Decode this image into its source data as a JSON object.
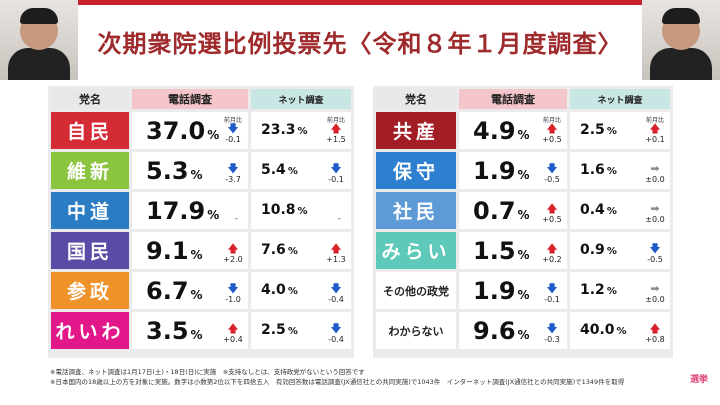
{
  "title": "次期衆院選比例投票先〈令和８年１月度調査〉",
  "headers": {
    "party": "党名",
    "phone": "電話調査",
    "net": "ネット調査"
  },
  "change_label": "前月比",
  "left_rows": [
    {
      "name": "自民",
      "color": "#d52b35",
      "phone": "37.0",
      "phone_dir": "down",
      "phone_chg": "-0.1",
      "net": "23.3",
      "net_dir": "up",
      "net_chg": "+1.5"
    },
    {
      "name": "維新",
      "color": "#8bc43f",
      "phone": "5.3",
      "phone_dir": "down",
      "phone_chg": "-3.7",
      "net": "5.4",
      "net_dir": "down",
      "net_chg": "-0.1"
    },
    {
      "name": "中道",
      "color": "#2a7dc2",
      "phone": "17.9",
      "phone_dir": "none",
      "phone_chg": "-",
      "net": "10.8",
      "net_dir": "none",
      "net_chg": "-"
    },
    {
      "name": "国民",
      "color": "#5b4aa6",
      "phone": "9.1",
      "phone_dir": "up",
      "phone_chg": "+2.0",
      "net": "7.6",
      "net_dir": "up",
      "net_chg": "+1.3"
    },
    {
      "name": "参政",
      "color": "#f0922a",
      "phone": "6.7",
      "phone_dir": "down",
      "phone_chg": "-1.0",
      "net": "4.0",
      "net_dir": "down",
      "net_chg": "-0.4"
    },
    {
      "name": "れいわ",
      "color": "#e2188a",
      "phone": "3.5",
      "phone_dir": "up",
      "phone_chg": "+0.4",
      "net": "2.5",
      "net_dir": "down",
      "net_chg": "-0.4"
    }
  ],
  "right_rows": [
    {
      "name": "共産",
      "color": "#a31d24",
      "phone": "4.9",
      "phone_dir": "up",
      "phone_chg": "+0.5",
      "net": "2.5",
      "net_dir": "up",
      "net_chg": "+0.1"
    },
    {
      "name": "保守",
      "color": "#2d80cf",
      "phone": "1.9",
      "phone_dir": "down",
      "phone_chg": "-0.5",
      "net": "1.6",
      "net_dir": "flat",
      "net_chg": "±0.0"
    },
    {
      "name": "社民",
      "color": "#5e9ad6",
      "phone": "0.7",
      "phone_dir": "up",
      "phone_chg": "+0.5",
      "net": "0.4",
      "net_dir": "flat",
      "net_chg": "±0.0"
    },
    {
      "name": "みらい",
      "color": "#5fc9b9",
      "phone": "1.5",
      "phone_dir": "up",
      "phone_chg": "+0.2",
      "net": "0.9",
      "net_dir": "down",
      "net_chg": "-0.5"
    },
    {
      "name": "その他の政党",
      "color": "#ffffff",
      "small": true,
      "phone": "1.9",
      "phone_dir": "down",
      "phone_chg": "-0.1",
      "net": "1.2",
      "net_dir": "flat",
      "net_chg": "±0.0"
    },
    {
      "name": "わからない",
      "color": "#ffffff",
      "small": true,
      "phone": "9.6",
      "phone_dir": "down",
      "phone_chg": "-0.3",
      "net": "40.0",
      "net_dir": "up",
      "net_chg": "+0.8"
    }
  ],
  "footnotes": [
    "※電話調査、ネット調査は1月17日(土)・18日(日)に実施　※支持なしとは、支持政党がないという回答です",
    "※日本国内の18歳以上の方を対象に実施。数字は小数第2位以下を四捨五入　有効回答数は電話調査(JX通信社との共同実施)で1043件　インターネット調査(JX通信社との共同実施)で1349件を取得"
  ],
  "logo_text": "選挙"
}
